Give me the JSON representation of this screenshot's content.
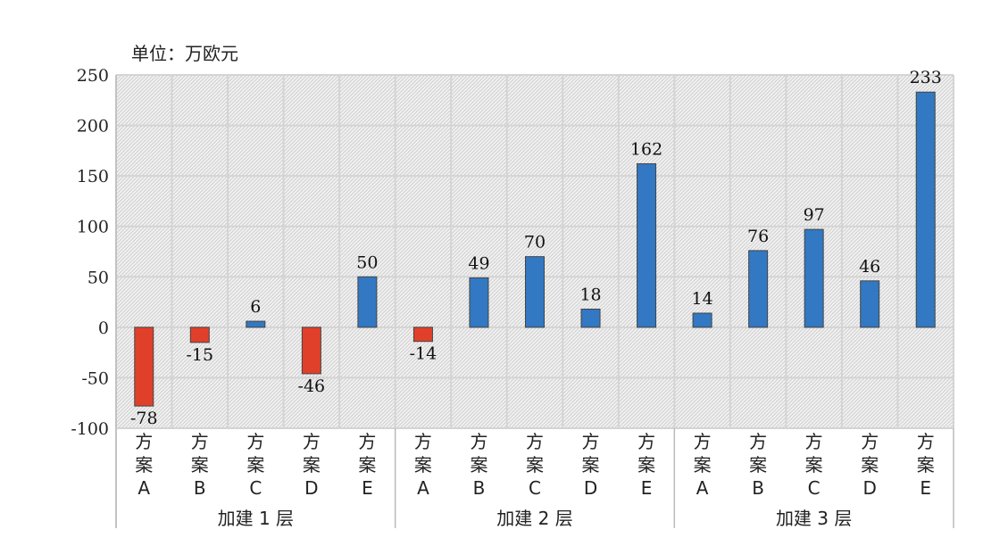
{
  "unit_label": "单位：万欧元",
  "colors": {
    "positive": "#3278c2",
    "negative": "#e0402a",
    "grid": "#d4d4d4",
    "axis": "#bbbbbb"
  },
  "chart_data": {
    "type": "bar",
    "ylim": [
      -100,
      250
    ],
    "yticks": [
      -100,
      -50,
      0,
      50,
      100,
      150,
      200,
      250
    ],
    "grid": true,
    "groups": [
      "加建 1 层",
      "加建 2 层",
      "加建 3 层"
    ],
    "category_char_lines": [
      "方",
      "案"
    ],
    "categories": [
      "A",
      "B",
      "C",
      "D",
      "E",
      "A",
      "B",
      "C",
      "D",
      "E",
      "A",
      "B",
      "C",
      "D",
      "E"
    ],
    "values": [
      -78,
      -15,
      6,
      -46,
      50,
      -14,
      49,
      70,
      18,
      162,
      14,
      76,
      97,
      46,
      233
    ]
  }
}
